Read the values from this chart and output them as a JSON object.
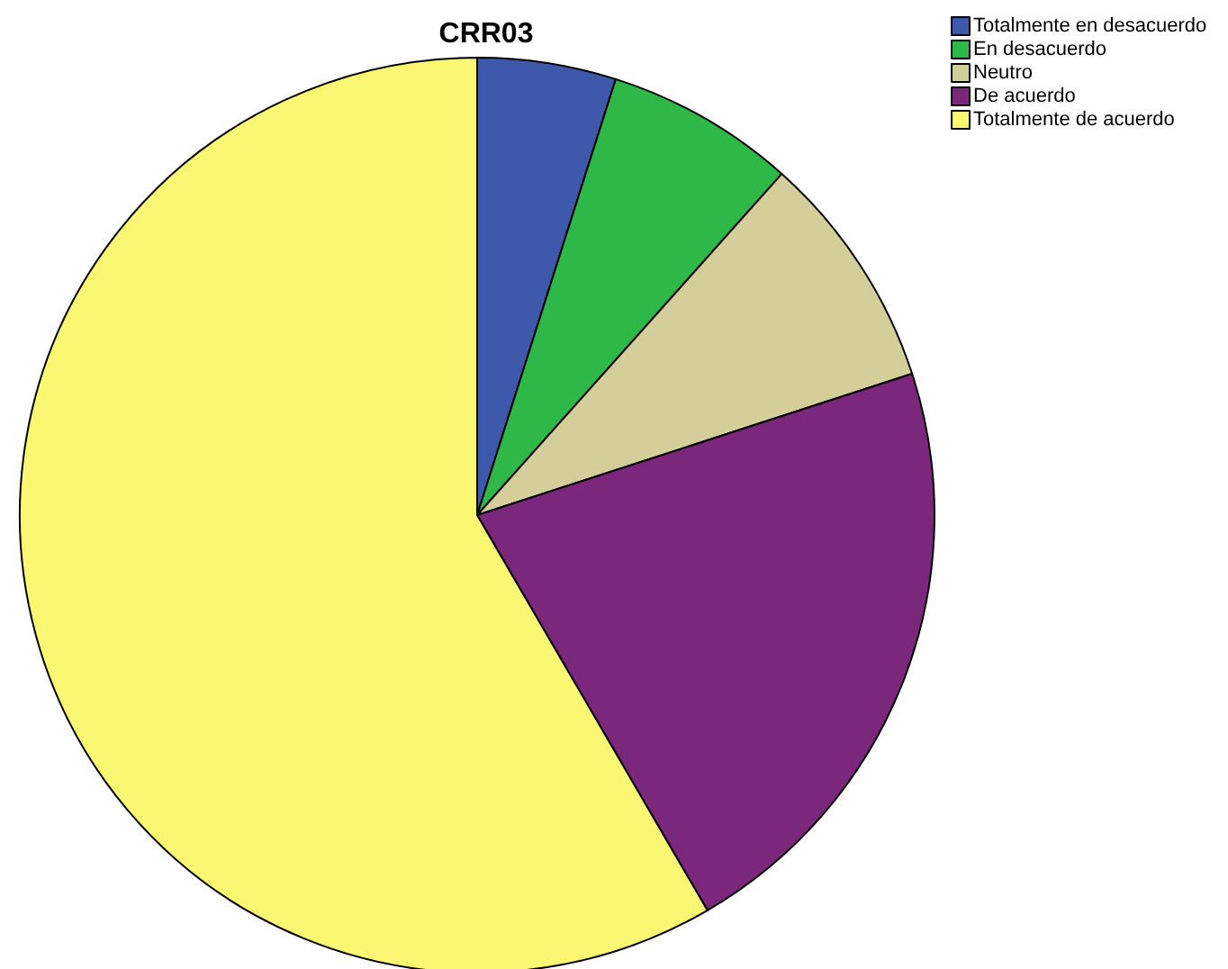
{
  "chart_data": {
    "type": "pie",
    "title": "CRR03",
    "categories": [
      "Totalmente en desacuerdo",
      "En desacuerdo",
      "Neutro",
      "De acuerdo",
      "Totalmente de acuerdo"
    ],
    "values": [
      4.9,
      6.7,
      8.4,
      21.6,
      58.4
    ],
    "colors": [
      "#3e58ac",
      "#2eb848",
      "#d4cf9a",
      "#7b287c",
      "#faf773"
    ],
    "legend": "top right"
  }
}
